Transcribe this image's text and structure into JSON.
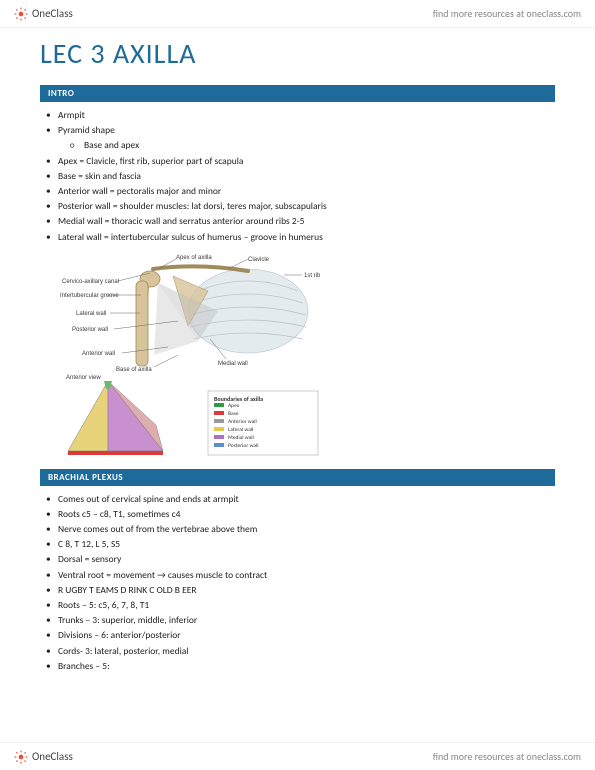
{
  "brand": {
    "name": "OneClass",
    "tagline": "find more resources at oneclass.com"
  },
  "page_title": "LEC 3 AXILLA",
  "sections": {
    "intro": {
      "heading": "INTRO",
      "bullets": [
        "Armpit",
        "Pyramid shape",
        "Apex = Clavicle, first rib, superior part of scapula",
        "Base = skin and fascia",
        "Anterior wall = pectoralis major and minor",
        "Posterior wall = shoulder muscles: lat dorsi, teres major, subscapularis",
        "Medial wall = thoracic wall and serratus anterior around ribs 2-5",
        "Lateral wall = intertubercular sulcus of humerus – groove in humerus"
      ],
      "sub_after_index": 1,
      "sub_bullets": [
        "Base and apex"
      ]
    },
    "brachial": {
      "heading": "BRACHIAL PLEXUS",
      "bullets": [
        "Comes out of cervical spine and ends at armpit",
        "Roots c5 – c8, T1, sometimes c4",
        "Nerve comes out of from the vertebrae above them",
        "C 8, T 12, L 5, S5",
        "Dorsal = sensory",
        "Ventral root = movement → causes muscle to contract",
        "R UGBY T EAMS D RINK C OLD B EER",
        "Roots – 5: c5, 6, 7, 8, T1",
        "Trunks – 3: superior, middle, inferior",
        "Divisions – 6: anterior/posterior",
        "Cords- 3: lateral, posterior, medial",
        "Branches – 5:"
      ]
    }
  },
  "diagram": {
    "labels": {
      "apex": "Apex of axilla",
      "clavicle": "Clavicle",
      "rib1": "1st rib",
      "cervico": "Cervico-axillary canal",
      "inter": "Intertubercular groove",
      "lateral": "Lateral wall",
      "posterior": "Posterior wall",
      "anterior": "Anterior wall",
      "base": "Base of axilla",
      "medial": "Medial wall",
      "antview": "Anterior view"
    },
    "legend": {
      "title": "Boundaries of axilla",
      "items": [
        {
          "label": "Apex",
          "color": "#2e9a4a"
        },
        {
          "label": "Base",
          "color": "#d93a3a"
        },
        {
          "label": "Anterior wall",
          "color": "#9a9a9a"
        },
        {
          "label": "Lateral wall",
          "color": "#e6c94a"
        },
        {
          "label": "Medial wall",
          "color": "#b070c0"
        },
        {
          "label": "Posterior wall",
          "color": "#5a8fc8"
        }
      ]
    },
    "bone_color": "#d8c49a",
    "bone_stroke": "#a08b5a",
    "pyramid_face1": "#e8d37a",
    "pyramid_face2": "#c98fce",
    "pyramid_face3": "#d9a0a0",
    "pyramid_apex": "#6fb66f",
    "rib_fill": "#cfd7dd"
  },
  "colors": {
    "accent": "#1e6a9b",
    "text": "#222222"
  }
}
